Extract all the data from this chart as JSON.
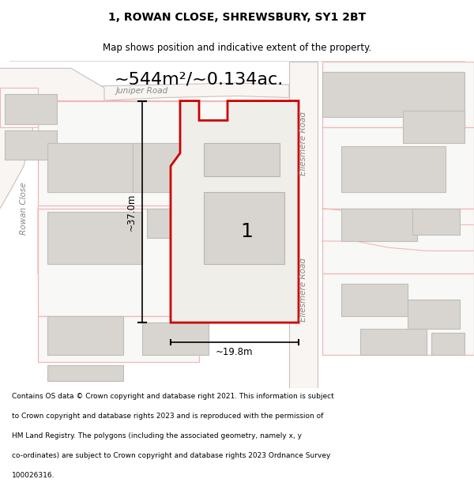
{
  "title": "1, ROWAN CLOSE, SHREWSBURY, SY1 2BT",
  "subtitle": "Map shows position and indicative extent of the property.",
  "area_text": "~544m²/~0.134ac.",
  "dim_height": "~37.0m",
  "dim_width": "~19.8m",
  "prop_label": "1",
  "footer_lines": [
    "Contains OS data © Crown copyright and database right 2021. This information is subject",
    "to Crown copyright and database rights 2023 and is reproduced with the permission of",
    "HM Land Registry. The polygons (including the associated geometry, namely x, y",
    "co-ordinates) are subject to Crown copyright and database rights 2023 Ordnance Survey",
    "100026316."
  ],
  "map_bg": "#ffffff",
  "road_fill": "#ffffff",
  "road_edge": "#f0b8b8",
  "plot_edge": "#f0b0b0",
  "prop_fill": "#f0eee8",
  "prop_edge": "#cc0000",
  "prop_edge_width": 2.0,
  "building_fill": "#d8d5d0",
  "building_edge": "#c0bdb8",
  "ellesmere_fill": "#f8f5f2",
  "ellesmere_edge": "#c8c0c0",
  "road_label_color": "#888888",
  "title_fontsize": 10,
  "subtitle_fontsize": 8.5,
  "area_fontsize": 16,
  "dim_fontsize": 8.5,
  "label_fontsize": 18,
  "road_label_fontsize": 7.5,
  "footer_fontsize": 6.5
}
